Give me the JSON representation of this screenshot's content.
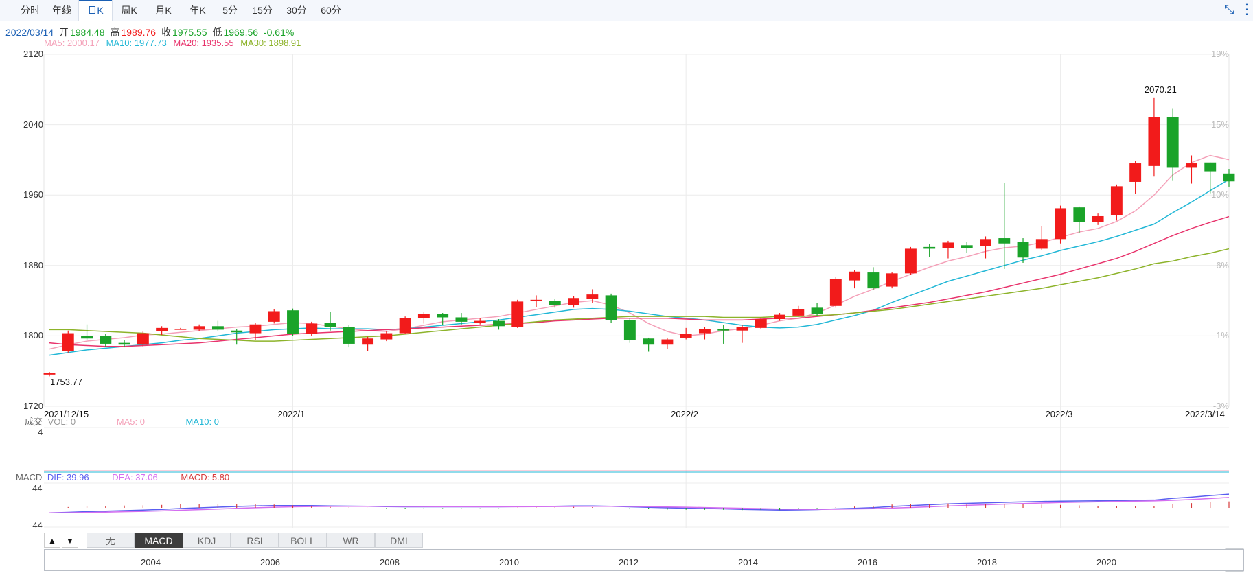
{
  "tabs": [
    {
      "label": "分时"
    },
    {
      "label": "年线"
    },
    {
      "label": "日K",
      "active": true
    },
    {
      "label": "周K"
    },
    {
      "label": "月K"
    },
    {
      "label": "年K"
    },
    {
      "label": "5分"
    },
    {
      "label": "15分"
    },
    {
      "label": "30分"
    },
    {
      "label": "60分"
    }
  ],
  "toolbar": {
    "shrink_icon": "compress-icon",
    "menu_icon": "vertical-dots-icon"
  },
  "info": {
    "date": "2022/03/14",
    "open_label": "开",
    "open": "1984.48",
    "high_label": "高",
    "high": "1989.76",
    "close_label": "收",
    "close": "1975.55",
    "low_label": "低",
    "low": "1969.56",
    "change": "-0.61%"
  },
  "ma": [
    {
      "label": "MA5: 2000.17",
      "color": "#f4a0b8"
    },
    {
      "label": "MA10: 1977.73",
      "color": "#21b7d6"
    },
    {
      "label": "MA20: 1935.55",
      "color": "#e8336c"
    },
    {
      "label": "MA30: 1898.91",
      "color": "#8db32a"
    }
  ],
  "colors": {
    "up": "#f21b1b",
    "down": "#1aa329",
    "grid": "#ececec",
    "dif": "#5a5ef0",
    "dea": "#d46ef0"
  },
  "annotations": {
    "max": "2070.21",
    "min": "1753.77"
  },
  "volume": {
    "section": "成交",
    "vol": "VOL: 0",
    "ma5": "MA5: 0",
    "ma10": "MA10: 0",
    "ytick": "4"
  },
  "macd": {
    "section": "MACD",
    "dif": "DIF: 39.96",
    "dea": "DEA: 37.06",
    "macd": "MACD: 5.80",
    "yticks": [
      "44",
      "-44"
    ]
  },
  "indicator_tabs": [
    "无",
    "MACD",
    "KDJ",
    "RSI",
    "BOLL",
    "WR",
    "DMI"
  ],
  "indicator_active": "MACD",
  "navigator": {
    "years": [
      "2004",
      "2006",
      "2008",
      "2010",
      "2012",
      "2014",
      "2016",
      "2018",
      "2020"
    ]
  },
  "chart_data": {
    "type": "candlestick",
    "ylim": [
      1720,
      2120
    ],
    "yticks": [
      "2120",
      "2040",
      "1960",
      "1880",
      "1800",
      "1720"
    ],
    "pct_ticks": [
      "19%",
      "15%",
      "10%",
      "6%",
      "1%",
      "-3%"
    ],
    "x_labels": [
      {
        "label": "2021/12/15",
        "i": 0
      },
      {
        "label": "2022/1",
        "i": 13
      },
      {
        "label": "2022/2",
        "i": 34
      },
      {
        "label": "2022/3",
        "i": 54
      },
      {
        "label": "2022/3/14",
        "i": 62
      }
    ],
    "candles": [
      {
        "o": 1756,
        "c": 1758,
        "h": 1759,
        "l": 1754
      },
      {
        "o": 1783,
        "c": 1803,
        "h": 1806,
        "l": 1781
      },
      {
        "o": 1800,
        "c": 1797,
        "h": 1813,
        "l": 1795
      },
      {
        "o": 1800,
        "c": 1791,
        "h": 1802,
        "l": 1788
      },
      {
        "o": 1792,
        "c": 1790,
        "h": 1795,
        "l": 1787
      },
      {
        "o": 1790,
        "c": 1803,
        "h": 1805,
        "l": 1788
      },
      {
        "o": 1805,
        "c": 1809,
        "h": 1811,
        "l": 1801
      },
      {
        "o": 1808,
        "c": 1808,
        "h": 1809,
        "l": 1807
      },
      {
        "o": 1807,
        "c": 1811,
        "h": 1813,
        "l": 1805
      },
      {
        "o": 1811,
        "c": 1807,
        "h": 1817,
        "l": 1805
      },
      {
        "o": 1806,
        "c": 1804,
        "h": 1808,
        "l": 1790
      },
      {
        "o": 1803,
        "c": 1813,
        "h": 1815,
        "l": 1795
      },
      {
        "o": 1816,
        "c": 1828,
        "h": 1830,
        "l": 1814
      },
      {
        "o": 1829,
        "c": 1802,
        "h": 1831,
        "l": 1800
      },
      {
        "o": 1802,
        "c": 1814,
        "h": 1816,
        "l": 1800
      },
      {
        "o": 1815,
        "c": 1810,
        "h": 1827,
        "l": 1806
      },
      {
        "o": 1810,
        "c": 1791,
        "h": 1812,
        "l": 1787
      },
      {
        "o": 1790,
        "c": 1797,
        "h": 1799,
        "l": 1783
      },
      {
        "o": 1796,
        "c": 1803,
        "h": 1805,
        "l": 1794
      },
      {
        "o": 1803,
        "c": 1820,
        "h": 1822,
        "l": 1802
      },
      {
        "o": 1820,
        "c": 1825,
        "h": 1827,
        "l": 1814
      },
      {
        "o": 1825,
        "c": 1821,
        "h": 1826,
        "l": 1812
      },
      {
        "o": 1821,
        "c": 1816,
        "h": 1826,
        "l": 1812
      },
      {
        "o": 1815,
        "c": 1817,
        "h": 1820,
        "l": 1813
      },
      {
        "o": 1817,
        "c": 1811,
        "h": 1819,
        "l": 1807
      },
      {
        "o": 1810,
        "c": 1839,
        "h": 1841,
        "l": 1809
      },
      {
        "o": 1840,
        "c": 1841,
        "h": 1846,
        "l": 1833
      },
      {
        "o": 1840,
        "c": 1835,
        "h": 1842,
        "l": 1832
      },
      {
        "o": 1835,
        "c": 1843,
        "h": 1845,
        "l": 1832
      },
      {
        "o": 1842,
        "c": 1847,
        "h": 1853,
        "l": 1837
      },
      {
        "o": 1846,
        "c": 1818,
        "h": 1848,
        "l": 1815
      },
      {
        "o": 1818,
        "c": 1795,
        "h": 1820,
        "l": 1792
      },
      {
        "o": 1797,
        "c": 1790,
        "h": 1798,
        "l": 1782
      },
      {
        "o": 1790,
        "c": 1796,
        "h": 1798,
        "l": 1785
      },
      {
        "o": 1798,
        "c": 1802,
        "h": 1809,
        "l": 1796
      },
      {
        "o": 1803,
        "c": 1808,
        "h": 1810,
        "l": 1796
      },
      {
        "o": 1808,
        "c": 1806,
        "h": 1812,
        "l": 1791
      },
      {
        "o": 1806,
        "c": 1810,
        "h": 1812,
        "l": 1792
      },
      {
        "o": 1809,
        "c": 1819,
        "h": 1821,
        "l": 1808
      },
      {
        "o": 1819,
        "c": 1824,
        "h": 1826,
        "l": 1817
      },
      {
        "o": 1823,
        "c": 1830,
        "h": 1834,
        "l": 1822
      },
      {
        "o": 1832,
        "c": 1825,
        "h": 1837,
        "l": 1823
      },
      {
        "o": 1834,
        "c": 1865,
        "h": 1867,
        "l": 1832
      },
      {
        "o": 1863,
        "c": 1873,
        "h": 1875,
        "l": 1854
      },
      {
        "o": 1872,
        "c": 1854,
        "h": 1878,
        "l": 1852
      },
      {
        "o": 1856,
        "c": 1871,
        "h": 1872,
        "l": 1854
      },
      {
        "o": 1871,
        "c": 1899,
        "h": 1901,
        "l": 1869
      },
      {
        "o": 1901,
        "c": 1899,
        "h": 1904,
        "l": 1890
      },
      {
        "o": 1900,
        "c": 1906,
        "h": 1908,
        "l": 1888
      },
      {
        "o": 1903,
        "c": 1900,
        "h": 1907,
        "l": 1894
      },
      {
        "o": 1902,
        "c": 1910,
        "h": 1913,
        "l": 1888
      },
      {
        "o": 1911,
        "c": 1905,
        "h": 1974,
        "l": 1876
      },
      {
        "o": 1907,
        "c": 1889,
        "h": 1911,
        "l": 1883
      },
      {
        "o": 1899,
        "c": 1910,
        "h": 1925,
        "l": 1897
      },
      {
        "o": 1910,
        "c": 1945,
        "h": 1948,
        "l": 1905
      },
      {
        "o": 1946,
        "c": 1929,
        "h": 1947,
        "l": 1917
      },
      {
        "o": 1929,
        "c": 1936,
        "h": 1939,
        "l": 1926
      },
      {
        "o": 1937,
        "c": 1970,
        "h": 1972,
        "l": 1931
      },
      {
        "o": 1975,
        "c": 1996,
        "h": 1999,
        "l": 1961
      },
      {
        "o": 1993,
        "c": 2049,
        "h": 2070.21,
        "l": 1981
      },
      {
        "o": 2049,
        "c": 1991,
        "h": 2058,
        "l": 1976
      },
      {
        "o": 1991,
        "c": 1996,
        "h": 2005,
        "l": 1973
      },
      {
        "o": 1997,
        "c": 1987,
        "h": 1997,
        "l": 1962
      },
      {
        "o": 1984.48,
        "c": 1975.55,
        "h": 1989.76,
        "l": 1969.56
      }
    ],
    "ma5": [
      1785,
      1790,
      1794,
      1796,
      1798,
      1801,
      1802,
      1804,
      1806,
      1808,
      1810,
      1811,
      1813,
      1815,
      1814,
      1811,
      1808,
      1806,
      1805,
      1808,
      1812,
      1816,
      1818,
      1820,
      1822,
      1826,
      1830,
      1834,
      1838,
      1840,
      1835,
      1826,
      1814,
      1805,
      1800,
      1802,
      1806,
      1808,
      1812,
      1817,
      1820,
      1826,
      1835,
      1845,
      1853,
      1862,
      1870,
      1878,
      1885,
      1890,
      1896,
      1900,
      1902,
      1906,
      1912,
      1918,
      1922,
      1930,
      1942,
      1960,
      1983,
      1997,
      2005,
      2000.17
    ],
    "ma10": [
      1778,
      1781,
      1784,
      1786,
      1788,
      1790,
      1792,
      1795,
      1797,
      1800,
      1803,
      1805,
      1807,
      1808,
      1809,
      1808,
      1808,
      1808,
      1807,
      1808,
      1810,
      1812,
      1814,
      1816,
      1818,
      1821,
      1824,
      1827,
      1830,
      1831,
      1830,
      1828,
      1825,
      1822,
      1820,
      1818,
      1815,
      1812,
      1810,
      1809,
      1810,
      1813,
      1818,
      1823,
      1829,
      1838,
      1846,
      1854,
      1862,
      1868,
      1874,
      1880,
      1886,
      1891,
      1897,
      1902,
      1907,
      1913,
      1920,
      1927,
      1940,
      1952,
      1965,
      1977.73
    ],
    "ma20": [
      1792,
      1790,
      1789,
      1788,
      1788,
      1789,
      1790,
      1791,
      1792,
      1794,
      1796,
      1798,
      1800,
      1802,
      1803,
      1804,
      1805,
      1806,
      1807,
      1808,
      1809,
      1810,
      1811,
      1812,
      1813,
      1814,
      1815,
      1817,
      1818,
      1819,
      1820,
      1820,
      1820,
      1820,
      1819,
      1818,
      1818,
      1818,
      1819,
      1820,
      1820,
      1822,
      1824,
      1826,
      1829,
      1832,
      1835,
      1838,
      1842,
      1846,
      1850,
      1855,
      1860,
      1865,
      1870,
      1876,
      1882,
      1888,
      1896,
      1905,
      1914,
      1922,
      1929,
      1935.55
    ],
    "ma30": [
      1807,
      1807,
      1806,
      1805,
      1804,
      1803,
      1801,
      1799,
      1797,
      1796,
      1795,
      1794,
      1794,
      1795,
      1796,
      1797,
      1798,
      1799,
      1800,
      1802,
      1804,
      1806,
      1808,
      1810,
      1812,
      1814,
      1816,
      1818,
      1819,
      1820,
      1821,
      1822,
      1822,
      1822,
      1822,
      1822,
      1821,
      1821,
      1821,
      1822,
      1822,
      1823,
      1824,
      1826,
      1828,
      1830,
      1833,
      1836,
      1839,
      1842,
      1845,
      1848,
      1851,
      1854,
      1858,
      1862,
      1866,
      1871,
      1876,
      1882,
      1885,
      1890,
      1894,
      1898.91
    ]
  }
}
